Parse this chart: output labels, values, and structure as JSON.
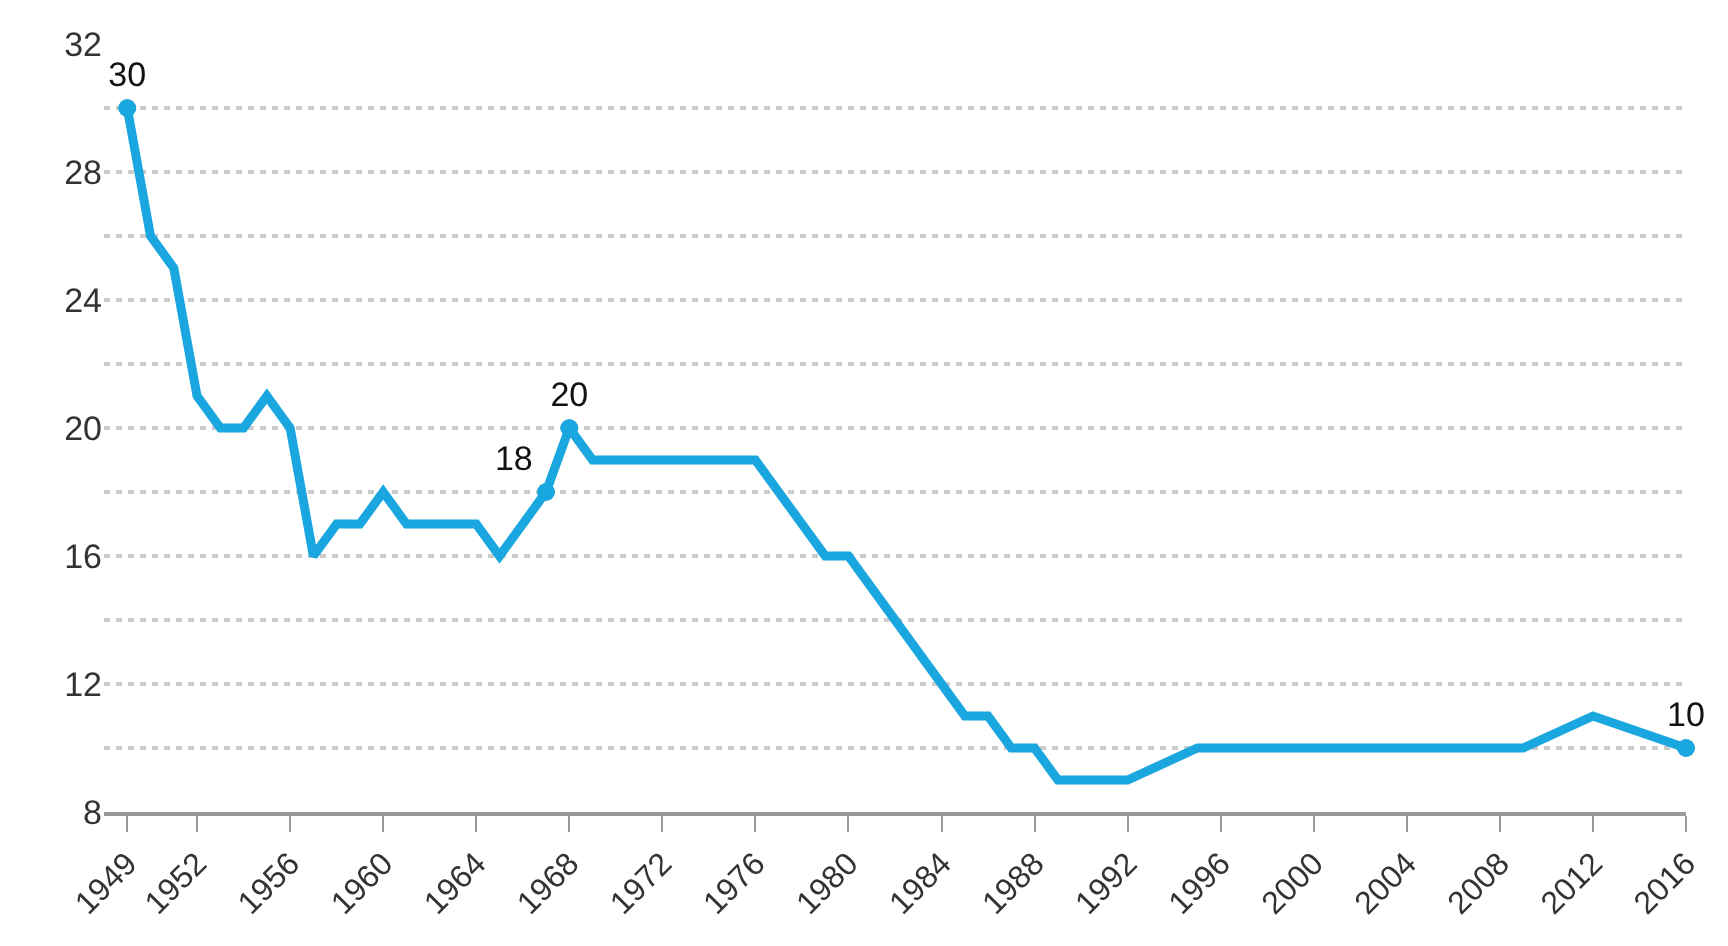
{
  "chart_data": {
    "type": "line",
    "x": [
      1949,
      1950,
      1951,
      1952,
      1953,
      1954,
      1955,
      1956,
      1957,
      1958,
      1959,
      1960,
      1961,
      1964,
      1965,
      1967,
      1968,
      1969,
      1976,
      1979,
      1980,
      1985,
      1986,
      1987,
      1988,
      1989,
      1992,
      1995,
      2009,
      2012,
      2016
    ],
    "series": [
      {
        "color": "#1aa7e0",
        "values": [
          30,
          26,
          25,
          21,
          20,
          20,
          21,
          20,
          16,
          17,
          17,
          18,
          17,
          17,
          16,
          18,
          20,
          19,
          19,
          16,
          16,
          11,
          11,
          10,
          10,
          9,
          9,
          10,
          10,
          11,
          10
        ],
        "value_labels": [
          "30",
          null,
          null,
          null,
          null,
          null,
          null,
          null,
          null,
          null,
          null,
          null,
          null,
          null,
          null,
          "18",
          "20",
          null,
          null,
          null,
          null,
          null,
          null,
          null,
          null,
          null,
          null,
          null,
          null,
          null,
          "10"
        ]
      }
    ],
    "xlim": [
      1948,
      2016
    ],
    "xticks": [
      1949,
      1952,
      1956,
      1960,
      1964,
      1968,
      1972,
      1976,
      1980,
      1984,
      1988,
      1992,
      1996,
      2000,
      2004,
      2008,
      2012,
      2016
    ],
    "ylim": [
      8,
      32
    ],
    "yticks": [
      8,
      {
        "value": 10,
        "label": null
      },
      12,
      {
        "value": 14,
        "label": null
      },
      16,
      {
        "value": 18,
        "label": null
      },
      20,
      {
        "value": 22,
        "label": null
      },
      24,
      {
        "value": 26,
        "label": null
      },
      28,
      {
        "value": 30,
        "label": null
      },
      32
    ],
    "grid": "y",
    "line_style": "solid"
  }
}
